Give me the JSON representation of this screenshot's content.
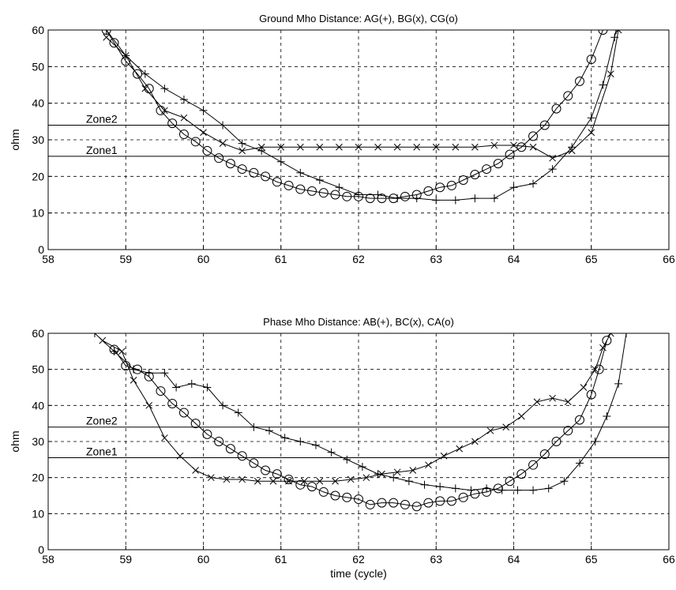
{
  "chart_data": [
    {
      "type": "line",
      "title": "Ground Mho Distance: AG(+), BG(x), CG(o)",
      "xlabel": "",
      "ylabel": "ohm",
      "xlim": [
        58,
        66
      ],
      "ylim": [
        0,
        60
      ],
      "xticks": [
        "58",
        "59",
        "60",
        "61",
        "62",
        "63",
        "64",
        "65",
        "66"
      ],
      "yticks": [
        "0",
        "10",
        "20",
        "30",
        "40",
        "50",
        "60"
      ],
      "grid": true,
      "zones": [
        {
          "label": "Zone2",
          "value": 34
        },
        {
          "label": "Zone1",
          "value": 25.5
        }
      ],
      "series": [
        {
          "name": "AG",
          "marker": "+",
          "points": [
            [
              58.75,
              60
            ],
            [
              59.0,
              53
            ],
            [
              59.25,
              48
            ],
            [
              59.5,
              44
            ],
            [
              59.75,
              41
            ],
            [
              60.0,
              38
            ],
            [
              60.25,
              34
            ],
            [
              60.5,
              29
            ],
            [
              60.75,
              27
            ],
            [
              61.0,
              24
            ],
            [
              61.25,
              21
            ],
            [
              61.5,
              19
            ],
            [
              61.75,
              17
            ],
            [
              62.0,
              15
            ],
            [
              62.25,
              15
            ],
            [
              62.5,
              14
            ],
            [
              62.75,
              14
            ],
            [
              63.0,
              13.5
            ],
            [
              63.25,
              13.5
            ],
            [
              63.5,
              14
            ],
            [
              63.75,
              14
            ],
            [
              64.0,
              17
            ],
            [
              64.25,
              18
            ],
            [
              64.5,
              22
            ],
            [
              64.75,
              28
            ],
            [
              65.0,
              36
            ],
            [
              65.15,
              45
            ],
            [
              65.3,
              58
            ],
            [
              65.32,
              60
            ]
          ]
        },
        {
          "name": "BG",
          "marker": "x",
          "points": [
            [
              58.75,
              58
            ],
            [
              59.0,
              53
            ],
            [
              59.25,
              44
            ],
            [
              59.5,
              38
            ],
            [
              59.75,
              36
            ],
            [
              60.0,
              32
            ],
            [
              60.25,
              29
            ],
            [
              60.5,
              27
            ],
            [
              60.75,
              28
            ],
            [
              61.0,
              28
            ],
            [
              61.25,
              28
            ],
            [
              61.5,
              28
            ],
            [
              61.75,
              28
            ],
            [
              62.0,
              28
            ],
            [
              62.25,
              28
            ],
            [
              62.5,
              28
            ],
            [
              62.75,
              28
            ],
            [
              63.0,
              28
            ],
            [
              63.25,
              28
            ],
            [
              63.5,
              28
            ],
            [
              63.75,
              28.5
            ],
            [
              64.0,
              28.5
            ],
            [
              64.25,
              28
            ],
            [
              64.5,
              25
            ],
            [
              64.75,
              27
            ],
            [
              65.0,
              32
            ],
            [
              65.25,
              48
            ],
            [
              65.35,
              60
            ]
          ]
        },
        {
          "name": "CG",
          "marker": "o",
          "points": [
            [
              58.75,
              60
            ],
            [
              58.85,
              56.5
            ],
            [
              59.0,
              51.5
            ],
            [
              59.15,
              48
            ],
            [
              59.3,
              44
            ],
            [
              59.45,
              38
            ],
            [
              59.6,
              34.5
            ],
            [
              59.75,
              31.5
            ],
            [
              59.9,
              29.5
            ],
            [
              60.05,
              27
            ],
            [
              60.2,
              25
            ],
            [
              60.35,
              23.5
            ],
            [
              60.5,
              22
            ],
            [
              60.65,
              21
            ],
            [
              60.8,
              20
            ],
            [
              60.95,
              18.5
            ],
            [
              61.1,
              17.5
            ],
            [
              61.25,
              16.5
            ],
            [
              61.4,
              16
            ],
            [
              61.55,
              15.5
            ],
            [
              61.7,
              15
            ],
            [
              61.85,
              14.5
            ],
            [
              62.0,
              14.5
            ],
            [
              62.15,
              14
            ],
            [
              62.3,
              14
            ],
            [
              62.45,
              14
            ],
            [
              62.6,
              14.5
            ],
            [
              62.75,
              15
            ],
            [
              62.9,
              16
            ],
            [
              63.05,
              17
            ],
            [
              63.2,
              17.5
            ],
            [
              63.35,
              19
            ],
            [
              63.5,
              20.5
            ],
            [
              63.65,
              22
            ],
            [
              63.8,
              23.5
            ],
            [
              63.95,
              26
            ],
            [
              64.1,
              28
            ],
            [
              64.25,
              31
            ],
            [
              64.4,
              34
            ],
            [
              64.55,
              38.5
            ],
            [
              64.7,
              42
            ],
            [
              64.85,
              46
            ],
            [
              65.0,
              52
            ],
            [
              65.15,
              60
            ]
          ]
        }
      ]
    },
    {
      "type": "line",
      "title": "Phase Mho Distance: AB(+), BC(x), CA(o)",
      "xlabel": "time (cycle)",
      "ylabel": "ohm",
      "xlim": [
        58,
        66
      ],
      "ylim": [
        0,
        60
      ],
      "xticks": [
        "58",
        "59",
        "60",
        "61",
        "62",
        "63",
        "64",
        "65",
        "66"
      ],
      "yticks": [
        "0",
        "10",
        "20",
        "30",
        "40",
        "50",
        "60"
      ],
      "grid": true,
      "zones": [
        {
          "label": "Zone2",
          "value": 34
        },
        {
          "label": "Zone1",
          "value": 25.5
        }
      ],
      "series": [
        {
          "name": "AB",
          "marker": "+",
          "points": [
            [
              58.6,
              60
            ],
            [
              58.85,
              55
            ],
            [
              59.1,
              50
            ],
            [
              59.3,
              49
            ],
            [
              59.5,
              49
            ],
            [
              59.65,
              45
            ],
            [
              59.85,
              46
            ],
            [
              60.05,
              45
            ],
            [
              60.25,
              40
            ],
            [
              60.45,
              38
            ],
            [
              60.65,
              34
            ],
            [
              60.85,
              33
            ],
            [
              61.05,
              31
            ],
            [
              61.25,
              30
            ],
            [
              61.45,
              29
            ],
            [
              61.65,
              27
            ],
            [
              61.85,
              25
            ],
            [
              62.05,
              23
            ],
            [
              62.25,
              21
            ],
            [
              62.45,
              20
            ],
            [
              62.65,
              19
            ],
            [
              62.85,
              18
            ],
            [
              63.05,
              17.5
            ],
            [
              63.25,
              17
            ],
            [
              63.45,
              16.5
            ],
            [
              63.65,
              17
            ],
            [
              63.85,
              16.5
            ],
            [
              64.05,
              16.5
            ],
            [
              64.25,
              16.5
            ],
            [
              64.45,
              17
            ],
            [
              64.65,
              19
            ],
            [
              64.85,
              24
            ],
            [
              65.05,
              30
            ],
            [
              65.2,
              37
            ],
            [
              65.35,
              46
            ],
            [
              65.45,
              60
            ]
          ]
        },
        {
          "name": "BC",
          "marker": "x",
          "points": [
            [
              58.7,
              58
            ],
            [
              58.95,
              55
            ],
            [
              59.1,
              47
            ],
            [
              59.3,
              40
            ],
            [
              59.5,
              31
            ],
            [
              59.7,
              26
            ],
            [
              59.9,
              22
            ],
            [
              60.1,
              20
            ],
            [
              60.3,
              19.5
            ],
            [
              60.5,
              19.5
            ],
            [
              60.7,
              19
            ],
            [
              60.9,
              19
            ],
            [
              61.1,
              19
            ],
            [
              61.3,
              19
            ],
            [
              61.5,
              19
            ],
            [
              61.7,
              19
            ],
            [
              61.9,
              19.5
            ],
            [
              62.1,
              20
            ],
            [
              62.3,
              21
            ],
            [
              62.5,
              21.5
            ],
            [
              62.7,
              22
            ],
            [
              62.9,
              23.5
            ],
            [
              63.1,
              26
            ],
            [
              63.3,
              28
            ],
            [
              63.5,
              30
            ],
            [
              63.7,
              33
            ],
            [
              63.9,
              34
            ],
            [
              64.1,
              37
            ],
            [
              64.3,
              41
            ],
            [
              64.5,
              42
            ],
            [
              64.7,
              41
            ],
            [
              64.9,
              45
            ],
            [
              65.05,
              50
            ],
            [
              65.15,
              56
            ],
            [
              65.25,
              60
            ]
          ]
        },
        {
          "name": "CA",
          "marker": "o",
          "points": [
            [
              58.85,
              55.5
            ],
            [
              59.0,
              51
            ],
            [
              59.15,
              50
            ],
            [
              59.3,
              48
            ],
            [
              59.45,
              44
            ],
            [
              59.6,
              40.5
            ],
            [
              59.75,
              38
            ],
            [
              59.9,
              35
            ],
            [
              60.05,
              32
            ],
            [
              60.2,
              30
            ],
            [
              60.35,
              28
            ],
            [
              60.5,
              26
            ],
            [
              60.65,
              24
            ],
            [
              60.8,
              22
            ],
            [
              60.95,
              21
            ],
            [
              61.1,
              19.5
            ],
            [
              61.25,
              18
            ],
            [
              61.4,
              17.5
            ],
            [
              61.55,
              16
            ],
            [
              61.7,
              15
            ],
            [
              61.85,
              14.5
            ],
            [
              62.0,
              14
            ],
            [
              62.15,
              12.5
            ],
            [
              62.3,
              13
            ],
            [
              62.45,
              13
            ],
            [
              62.6,
              12.5
            ],
            [
              62.75,
              12
            ],
            [
              62.9,
              13
            ],
            [
              63.05,
              13.5
            ],
            [
              63.2,
              13.5
            ],
            [
              63.35,
              14.5
            ],
            [
              63.5,
              15.5
            ],
            [
              63.65,
              16
            ],
            [
              63.8,
              17
            ],
            [
              63.95,
              19
            ],
            [
              64.1,
              21
            ],
            [
              64.25,
              23.5
            ],
            [
              64.4,
              26.5
            ],
            [
              64.55,
              30
            ],
            [
              64.7,
              33
            ],
            [
              64.85,
              36
            ],
            [
              65.0,
              43
            ],
            [
              65.1,
              50
            ],
            [
              65.2,
              58
            ]
          ]
        }
      ]
    }
  ]
}
